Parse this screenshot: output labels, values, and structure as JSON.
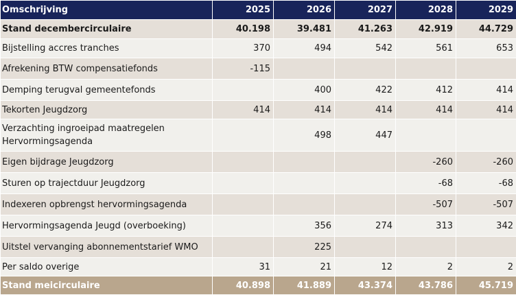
{
  "table": {
    "headers": [
      "Omschrijving",
      "2025",
      "2026",
      "2027",
      "2028",
      "2029"
    ],
    "rows": [
      {
        "label": "Stand decembercirculaire",
        "values": [
          "40.198",
          "39.481",
          "41.263",
          "42.919",
          "44.729"
        ]
      },
      {
        "label": "Bijstelling accres tranches",
        "values": [
          "370",
          "494",
          "542",
          "561",
          "653"
        ]
      },
      {
        "label": "Afrekening BTW compensatiefonds",
        "values": [
          "-115",
          "",
          "",
          "",
          ""
        ]
      },
      {
        "label": "Demping terugval gemeentefonds",
        "values": [
          "",
          "400",
          "422",
          "412",
          "414"
        ]
      },
      {
        "label": "Tekorten Jeugdzorg",
        "values": [
          "414",
          "414",
          "414",
          "414",
          "414"
        ]
      },
      {
        "label": "Verzachting ingroeipad maatregelen Hervormingsagenda",
        "values": [
          "",
          "498",
          "447",
          "",
          ""
        ]
      },
      {
        "label": "Eigen bijdrage Jeugdzorg",
        "values": [
          "",
          "",
          "",
          "-260",
          "-260"
        ]
      },
      {
        "label": "Sturen op trajectduur Jeugdzorg",
        "values": [
          "",
          "",
          "",
          "-68",
          "-68"
        ]
      },
      {
        "label": "Indexeren opbrengst hervormingsagenda",
        "values": [
          "",
          "",
          "",
          "-507",
          "-507"
        ]
      },
      {
        "label": "Hervormingsagenda Jeugd (overboeking)",
        "values": [
          "",
          "356",
          "274",
          "313",
          "342"
        ]
      },
      {
        "label": "Uitstel vervanging abonnementstarief WMO",
        "values": [
          "",
          "225",
          "",
          "",
          ""
        ]
      },
      {
        "label": "Per saldo overige",
        "values": [
          "31",
          "21",
          "12",
          "2",
          "2"
        ]
      }
    ],
    "total": {
      "label": "Stand meicirculaire",
      "values": [
        "40.898",
        "41.889",
        "43.374",
        "43.786",
        "45.719"
      ]
    }
  },
  "colors": {
    "header_bg": "#18245a",
    "row_light": "#f1f0ec",
    "row_dark": "#e5dfd8",
    "total_bg": "#b9a68d"
  }
}
